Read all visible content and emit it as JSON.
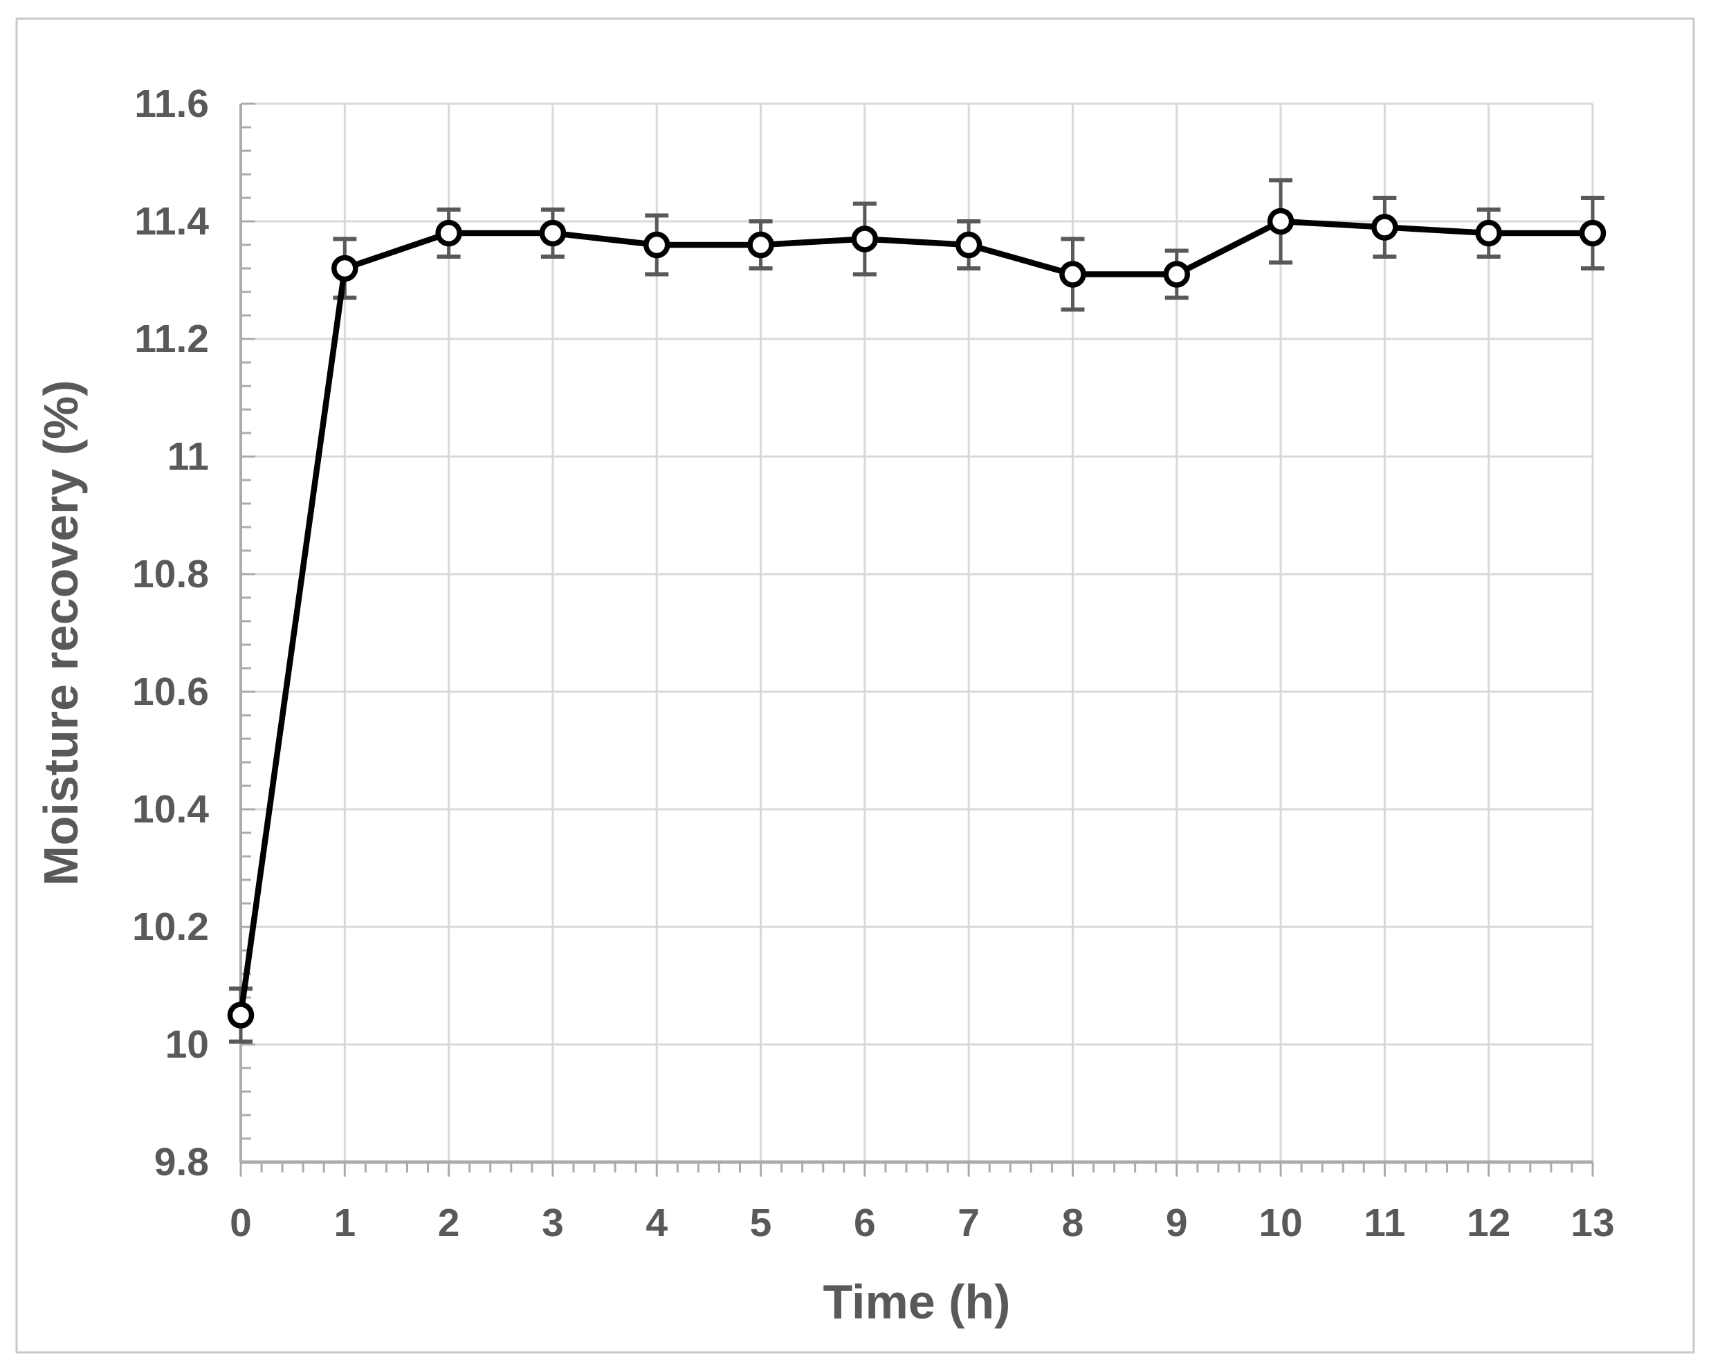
{
  "figure": {
    "background": "#ffffff",
    "border_color": "#c9c9c9"
  },
  "chart_data": {
    "type": "line",
    "title": "",
    "xlabel": "Time (h)",
    "ylabel": "Moisture recovery (%)",
    "x": [
      0,
      1,
      2,
      3,
      4,
      5,
      6,
      7,
      8,
      9,
      10,
      11,
      12,
      13
    ],
    "x_tick_labels": [
      "0",
      "1",
      "2",
      "3",
      "4",
      "5",
      "6",
      "7",
      "8",
      "9",
      "10",
      "11",
      "12",
      "13"
    ],
    "y_tick_labels": [
      "9.8",
      "10",
      "10.2",
      "10.4",
      "10.6",
      "10.8",
      "11",
      "11.2",
      "11.4",
      "11.6"
    ],
    "xlim": [
      0,
      13
    ],
    "ylim": [
      9.8,
      11.6
    ],
    "y_major_step": 0.2,
    "y_minor_step": 0.04,
    "x_major_step": 1,
    "x_minor_step": 0.2,
    "grid": true,
    "legend": "none",
    "series": [
      {
        "name": "Moisture recovery",
        "marker": "open-circle",
        "marker_fill": "#ffffff",
        "line_color": "#000000",
        "error_bar_color": "#595959",
        "values": [
          10.05,
          11.32,
          11.38,
          11.38,
          11.36,
          11.36,
          11.37,
          11.36,
          11.31,
          11.31,
          11.4,
          11.39,
          11.38,
          11.38
        ],
        "error_bars": [
          0.045,
          0.05,
          0.04,
          0.04,
          0.05,
          0.04,
          0.06,
          0.04,
          0.06,
          0.04,
          0.07,
          0.05,
          0.04,
          0.06
        ]
      }
    ],
    "colors": {
      "grid": "#d9d9d9",
      "axis": "#ababab",
      "text": "#595959"
    }
  }
}
